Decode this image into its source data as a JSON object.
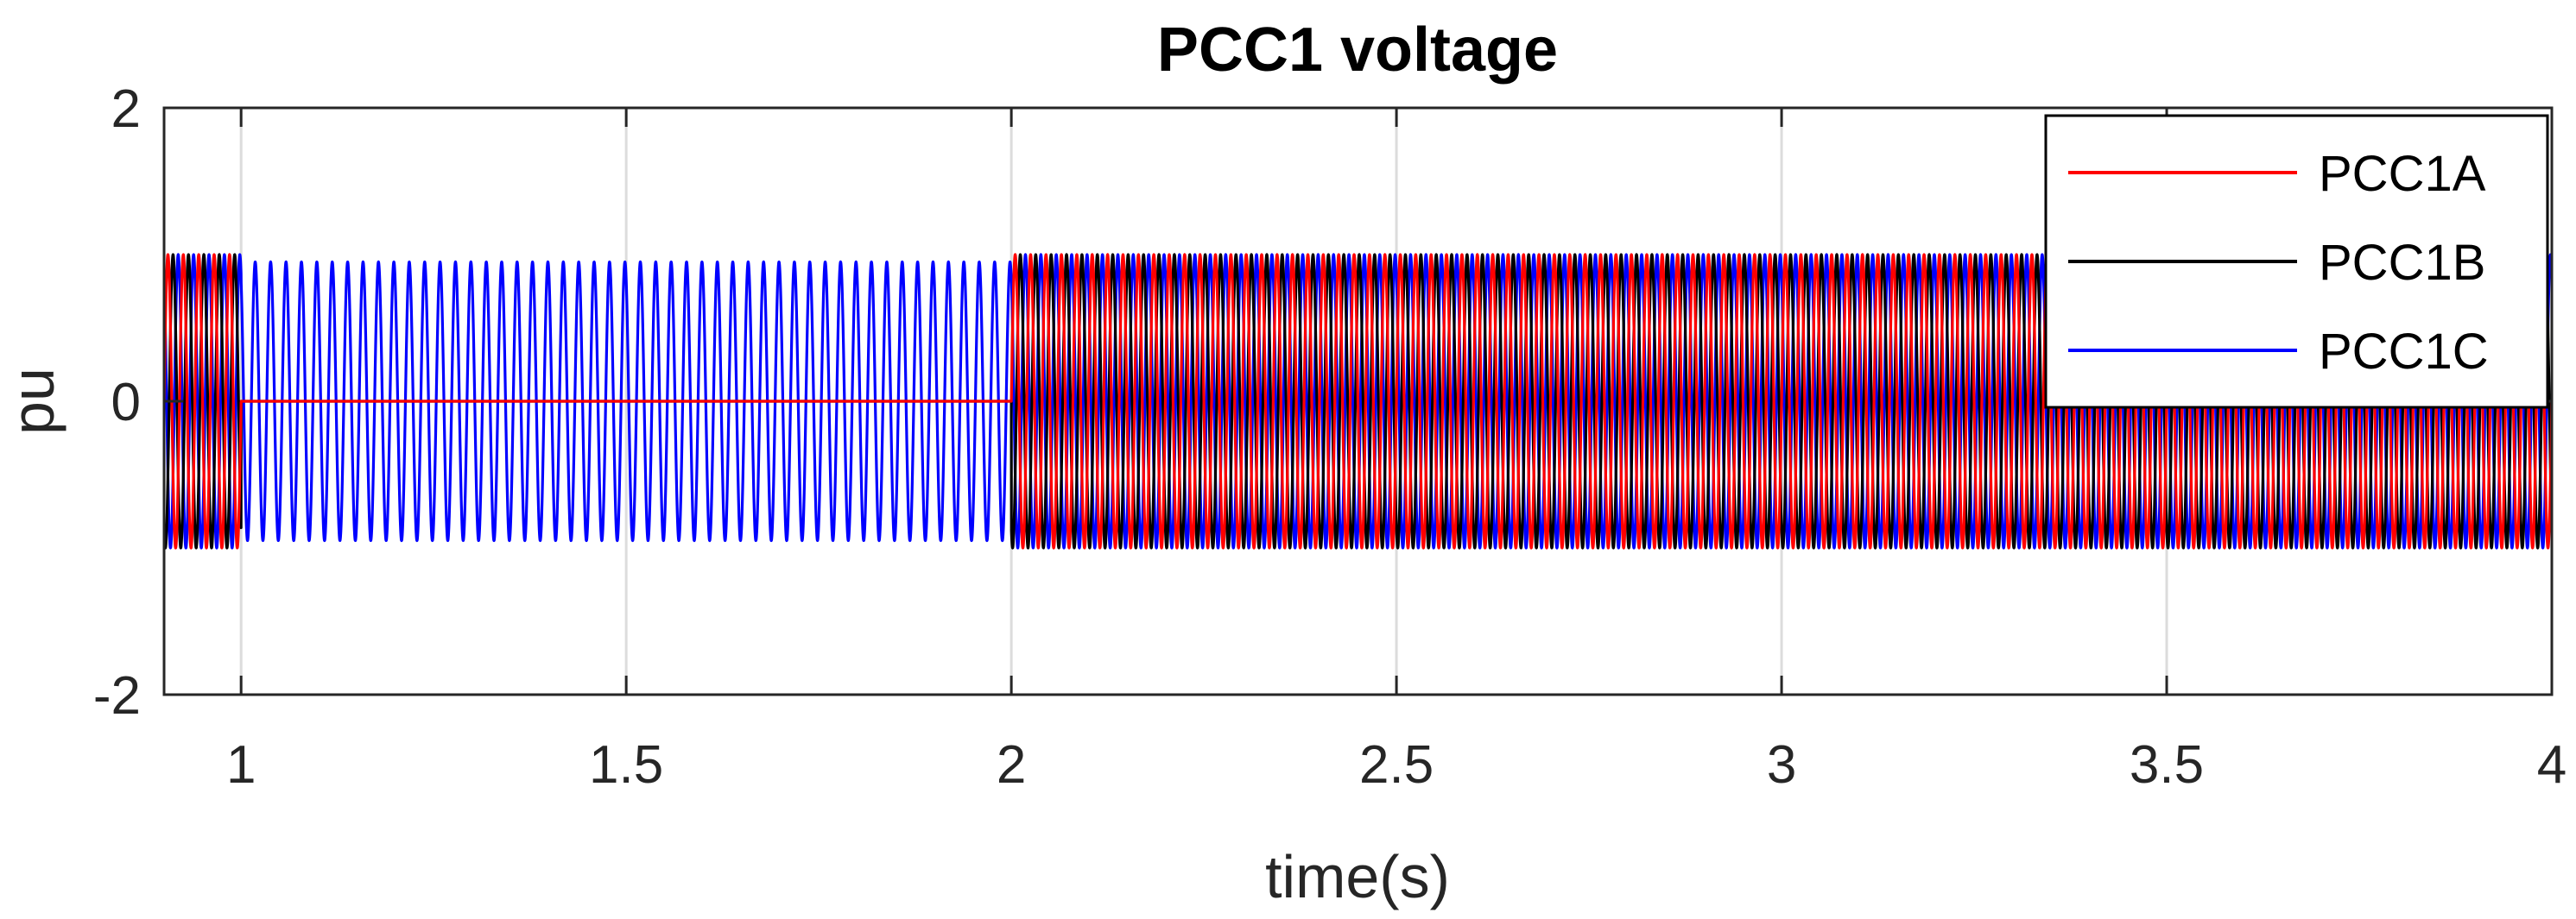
{
  "chart_data": {
    "type": "line",
    "title": "PCC1 voltage",
    "xlabel": "time(s)",
    "ylabel": "pu",
    "xlim": [
      0.9,
      4
    ],
    "ylim": [
      -2,
      2
    ],
    "xticks": [
      1,
      1.5,
      2,
      2.5,
      3,
      3.5,
      4
    ],
    "yticks": [
      -2,
      0,
      2
    ],
    "grid": true,
    "legend_position": "top-right",
    "frequency_hz": 50,
    "events": [
      {
        "t_start": 0.9,
        "t_end": 1.0,
        "state": "normal operation",
        "amplitude": {
          "PCC1A": 1.0,
          "PCC1B": 1.0,
          "PCC1C": 1.0
        }
      },
      {
        "t_start": 1.0,
        "t_end": 2.0,
        "state": "fault on phases A and B",
        "amplitude": {
          "PCC1A": 0.0,
          "PCC1B": 0.0,
          "PCC1C": 0.95
        }
      },
      {
        "t_start": 2.0,
        "t_end": 4.0,
        "state": "normal operation",
        "amplitude": {
          "PCC1A": 1.0,
          "PCC1B": 1.0,
          "PCC1C": 1.0
        }
      }
    ],
    "series": [
      {
        "name": "PCC1A",
        "color": "#ff0000",
        "phase_deg": 0
      },
      {
        "name": "PCC1B",
        "color": "#000000",
        "phase_deg": -120
      },
      {
        "name": "PCC1C",
        "color": "#0000ff",
        "phase_deg": 120
      }
    ]
  }
}
